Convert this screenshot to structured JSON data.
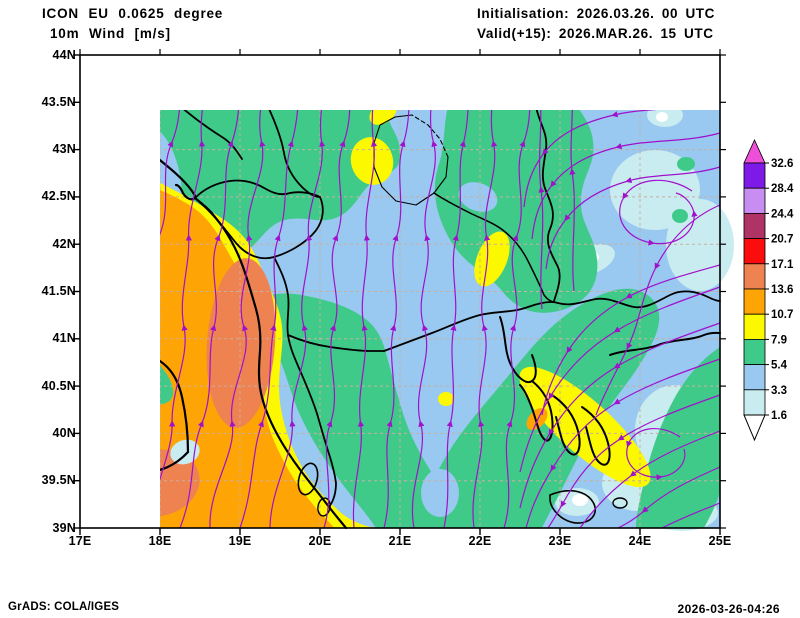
{
  "header": {
    "model_line": "ICON EU 0.0625 degree",
    "field_line": "10m Wind [m/s]",
    "init_line": "Initialisation: 2026.03.26. 00 UTC",
    "valid_line": "Valid(+15): 2026.MAR.26. 15 UTC"
  },
  "footer": {
    "credit": "GrADS: COLA/IGES",
    "timestamp": "2026-03-26-04:26"
  },
  "chart_data": {
    "type": "heatmap",
    "subtype": "filled-contour wind speed map with streamlines",
    "title": "ICON EU 0.0625 degree — 10m Wind [m/s]",
    "x_axis": {
      "ticks": [
        "17E",
        "18E",
        "19E",
        "20E",
        "21E",
        "22E",
        "23E",
        "24E",
        "25E"
      ],
      "range": [
        17,
        25
      ]
    },
    "y_axis": {
      "ticks": [
        "44N",
        "43.5N",
        "43N",
        "42.5N",
        "42N",
        "41.5N",
        "41N",
        "40.5N",
        "40N",
        "39.5N",
        "39N"
      ],
      "range": [
        39,
        44
      ]
    },
    "grid": "dashed graticule every 0.5 deg latitude / 1 deg longitude",
    "colorbar": {
      "units": "m/s",
      "levels": [
        1.6,
        3.3,
        5.4,
        7.9,
        10.7,
        13.6,
        17.1,
        20.7,
        24.4,
        28.4,
        32.6
      ],
      "bands": [
        {
          "cap": "top",
          "color": "#ee4fd8"
        },
        {
          "label": "32.6",
          "color": "#7d1ae8"
        },
        {
          "label": "28.4",
          "color": "#c78df2"
        },
        {
          "label": "24.4",
          "color": "#b03366"
        },
        {
          "label": "20.7",
          "color": "#fb0d0d"
        },
        {
          "label": "17.1",
          "color": "#ee8351"
        },
        {
          "label": "13.6",
          "color": "#ffa405"
        },
        {
          "label": "10.7",
          "color": "#fcf800"
        },
        {
          "label": "7.9",
          "color": "#40ca8a"
        },
        {
          "label": "5.4",
          "color": "#99c8f0"
        },
        {
          "label": "3.3",
          "color": "#c9ecf0"
        },
        {
          "label": "1.6",
          "color": "#ffffff",
          "cap": "bottom"
        }
      ]
    },
    "palette": {
      "sea": "#99c8f0",
      "calm": "#c9ecf0",
      "white": "#ffffff",
      "green": "#40ca8a",
      "yellow": "#fcf800",
      "orange": "#ffa405",
      "strong": "#ee8351",
      "stream": "#a011cc",
      "grid": "#c9af9e",
      "border": "#000000"
    },
    "features": [
      {
        "area": "southern Adriatic / Strait of Otranto (17E-20E, 39N-43N)",
        "wind_ms": "10.7-17.1",
        "fill": "orange with 13.6-17.1 salmon cores"
      },
      {
        "area": "coastal strip Montenegro-Albania-NW Greece",
        "wind_ms": "7.9-10.7",
        "fill": "yellow"
      },
      {
        "area": "inland western Balkans (Bosnia, Serbia, Albania interior)",
        "wind_ms": "5.4-7.9",
        "fill": "green"
      },
      {
        "area": "Kosovo / central valley and eastern lowlands",
        "wind_ms": "3.3-5.4",
        "fill": "light blue with small 7.9-10.7 yellow spots"
      },
      {
        "area": "northeast quadrant (23E-25E, 42N-44N)",
        "wind_ms": "1.6-3.3 pockets, local calm < 1.6",
        "fill": "pale cyan with white spots"
      },
      {
        "area": "north Aegean jet (22E-24E, 39.5N-41N)",
        "wind_ms": "7.9-10.7 with small 10.7-13.6 core",
        "fill": "yellow band, orange dot"
      }
    ],
    "streamlines": "magenta streamlines with arrowheads: southerly flow over the Adriatic and western Balkans turning north-northeast; northeasterly flow over the eastern Balkans and north Aegean turning southwest; convergence near 21E-22E; weak eddies in the northeast"
  }
}
